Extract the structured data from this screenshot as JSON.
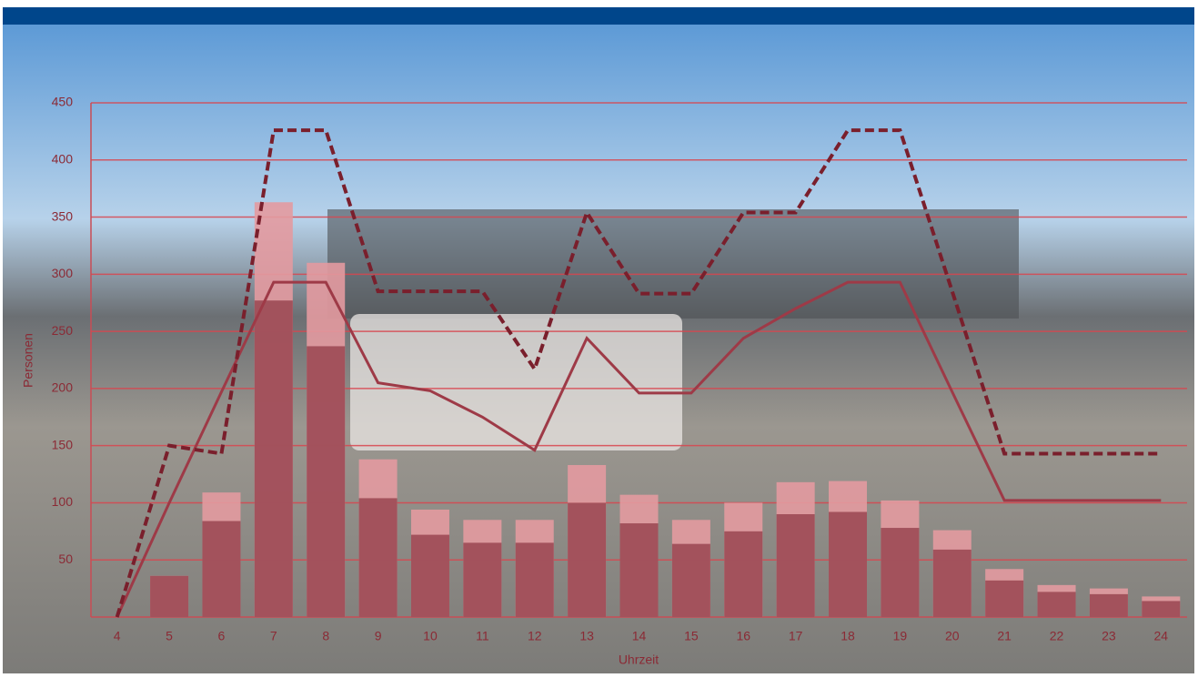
{
  "chart_data": {
    "type": "bar-line",
    "x_label": "Uhrzeit",
    "y_label": "Personen",
    "categories": [
      "4",
      "5",
      "6",
      "7",
      "8",
      "9",
      "10",
      "11",
      "12",
      "13",
      "14",
      "15",
      "16",
      "17",
      "18",
      "19",
      "20",
      "21",
      "22",
      "23",
      "24"
    ],
    "series": [
      {
        "kind": "bar",
        "color": "#e39aa0",
        "values": [
          null,
          36,
          109,
          363,
          310,
          138,
          94,
          85,
          85,
          133,
          107,
          85,
          100,
          118,
          119,
          102,
          76,
          42,
          28,
          25,
          18
        ]
      },
      {
        "kind": "bar",
        "color": "#9c4a55",
        "values": [
          null,
          36,
          84,
          277,
          237,
          104,
          72,
          65,
          65,
          100,
          82,
          64,
          75,
          90,
          92,
          78,
          59,
          32,
          22,
          20,
          14
        ]
      },
      {
        "kind": "line",
        "color": "#9e3a47",
        "dashed": false,
        "values": [
          0,
          100,
          197,
          293,
          293,
          205,
          198,
          175,
          146,
          244,
          196,
          196,
          244,
          270,
          293,
          293,
          197,
          102,
          102,
          102,
          102
        ]
      },
      {
        "kind": "line",
        "color": "#7a1f2c",
        "dashed": true,
        "values": [
          0,
          150,
          143,
          426,
          426,
          285,
          285,
          285,
          217,
          354,
          283,
          283,
          354,
          354,
          426,
          426,
          285,
          143,
          143,
          143,
          143
        ]
      }
    ],
    "ylim": [
      0,
      450
    ],
    "yticks": [
      50,
      100,
      150,
      200,
      250,
      300,
      350,
      400,
      450
    ],
    "grid": true
  }
}
